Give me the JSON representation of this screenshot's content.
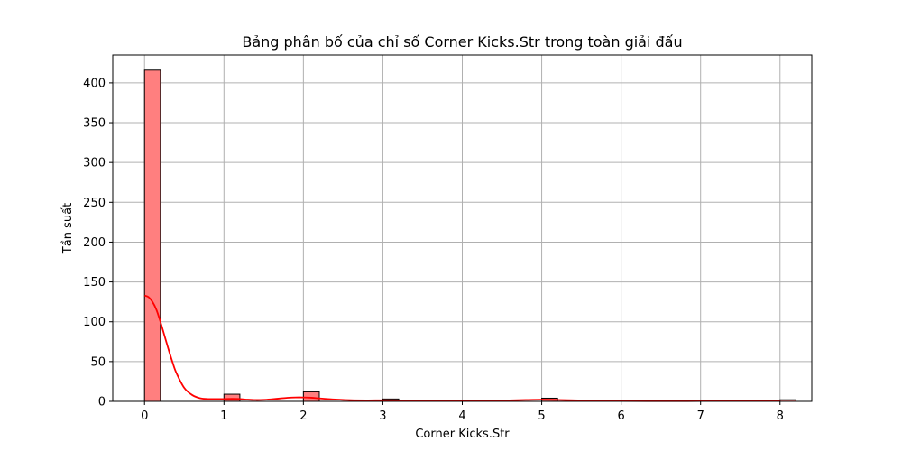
{
  "chart_data": {
    "type": "bar",
    "title": "Bảng phân bố của chỉ số Corner Kicks.Str trong toàn giải đấu",
    "xlabel": "Corner Kicks.Str",
    "ylabel": "Tần suất",
    "xlim": [
      -0.4,
      8.4
    ],
    "ylim": [
      0,
      435
    ],
    "xticks": [
      "0",
      "1",
      "2",
      "3",
      "4",
      "5",
      "6",
      "7",
      "8"
    ],
    "yticks": [
      "0",
      "50",
      "100",
      "150",
      "200",
      "250",
      "300",
      "350",
      "400"
    ],
    "grid": true,
    "bin_width": 0.2,
    "bars": [
      {
        "x": 0,
        "value": 416
      },
      {
        "x": 1,
        "value": 9
      },
      {
        "x": 2,
        "value": 12
      },
      {
        "x": 3,
        "value": 3
      },
      {
        "x": 5,
        "value": 4
      },
      {
        "x": 8,
        "value": 2
      }
    ],
    "kde": {
      "x": [
        0,
        0.05,
        0.1,
        0.15,
        0.2,
        0.25,
        0.3,
        0.35,
        0.4,
        0.5,
        0.6,
        0.7,
        0.8,
        0.9,
        1.0,
        1.1,
        1.2,
        1.3,
        1.4,
        1.5,
        1.6,
        1.7,
        1.8,
        1.9,
        2.0,
        2.1,
        2.2,
        2.4,
        2.6,
        2.8,
        3.0,
        3.2,
        3.4,
        3.6,
        4.0,
        4.4,
        4.8,
        5.0,
        5.2,
        5.6,
        6.0,
        6.5,
        7.0,
        7.5,
        7.8,
        8.0
      ],
      "y": [
        133,
        131,
        125,
        115,
        100,
        83,
        66,
        50,
        36,
        17,
        8,
        4,
        3,
        3,
        3,
        3.2,
        3,
        2.2,
        1.8,
        2,
        2.7,
        3.6,
        4.5,
        5,
        5,
        4.6,
        3.8,
        2.4,
        1.5,
        1.3,
        1.4,
        1.3,
        1.1,
        0.8,
        0.6,
        0.9,
        1.8,
        2.1,
        1.8,
        0.9,
        0.4,
        0.3,
        0.4,
        0.7,
        0.9,
        1
      ]
    },
    "colors": {
      "bar_fill": "#ff7f7f",
      "bar_edge": "#000000",
      "kde_line": "#ff0000",
      "grid": "#b0b0b0"
    }
  }
}
